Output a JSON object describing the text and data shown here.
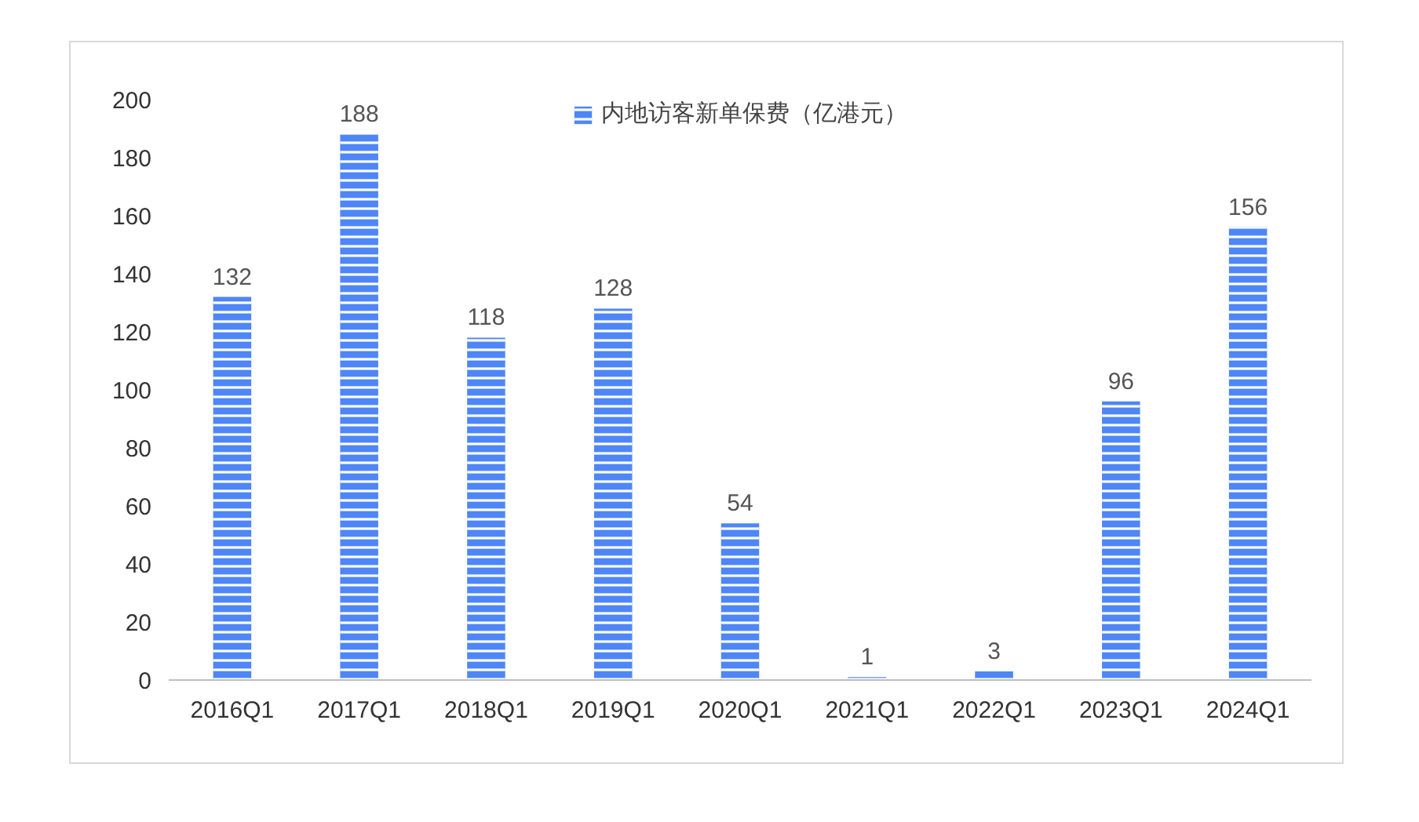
{
  "chart_data": {
    "type": "bar",
    "categories": [
      "2016Q1",
      "2017Q1",
      "2018Q1",
      "2019Q1",
      "2020Q1",
      "2021Q1",
      "2022Q1",
      "2023Q1",
      "2024Q1"
    ],
    "series": [
      {
        "name": "内地访客新单保费（亿港元）",
        "color": "#4f86f7",
        "values": [
          132,
          188,
          118,
          128,
          54,
          1,
          3,
          96,
          156
        ]
      }
    ],
    "ylim": [
      0,
      200
    ],
    "yticks": [
      0,
      20,
      40,
      60,
      80,
      100,
      120,
      140,
      160,
      180,
      200
    ],
    "grid": false,
    "legend": "top",
    "data_labels": true
  }
}
